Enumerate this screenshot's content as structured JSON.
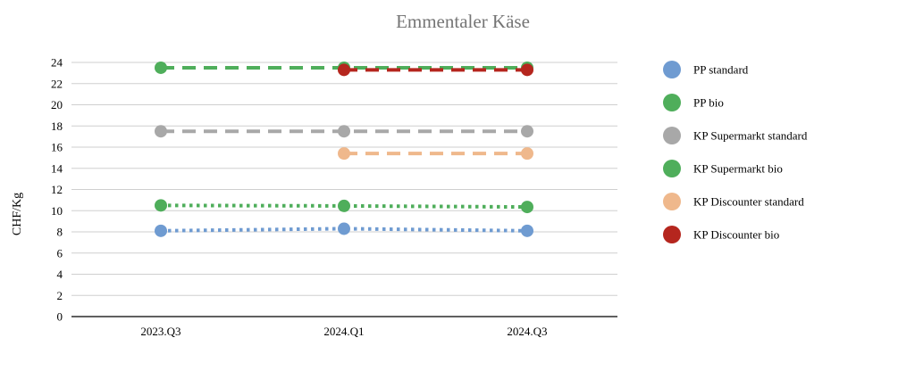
{
  "chart_data": {
    "type": "line",
    "title": "Emmentaler Käse",
    "xlabel": "",
    "ylabel": "CHF/Kg",
    "ylim": [
      0,
      24
    ],
    "yticks": [
      0,
      2,
      4,
      6,
      8,
      10,
      12,
      14,
      16,
      18,
      20,
      22,
      24
    ],
    "categories": [
      "2023.Q3",
      "2024.Q1",
      "2024.Q3"
    ],
    "grid": true,
    "legend_position": "right",
    "series": [
      {
        "name": "PP standard",
        "values": [
          8.1,
          8.3,
          8.1
        ],
        "color": "#6f9bd1",
        "line_style": "dotted"
      },
      {
        "name": "PP bio",
        "values": [
          10.5,
          10.45,
          10.35
        ],
        "color": "#4fae5b",
        "line_style": "dotted"
      },
      {
        "name": "KP Supermarkt standard",
        "values": [
          17.5,
          17.5,
          17.5
        ],
        "color": "#a8a8a8",
        "line_style": "dashed"
      },
      {
        "name": "KP Supermarkt bio",
        "values": [
          23.5,
          23.5,
          23.5
        ],
        "color": "#4fae5b",
        "line_style": "dashed"
      },
      {
        "name": "KP Discounter standard",
        "values": [
          null,
          15.4,
          15.4
        ],
        "color": "#efb88c",
        "line_style": "dashed"
      },
      {
        "name": "KP Discounter bio",
        "values": [
          null,
          23.3,
          23.3
        ],
        "color": "#b5261e",
        "line_style": "dashed"
      }
    ]
  }
}
